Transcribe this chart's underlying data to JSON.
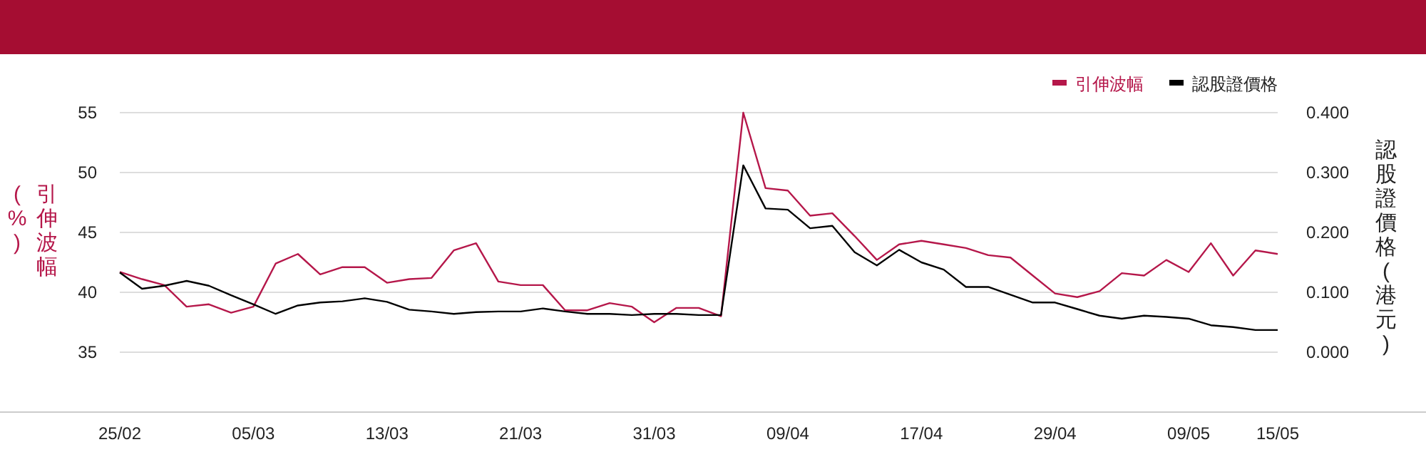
{
  "chart_data": {
    "type": "line",
    "categories": [
      "25/02",
      null,
      null,
      null,
      null,
      null,
      "05/03",
      null,
      null,
      null,
      null,
      null,
      "13/03",
      null,
      null,
      null,
      null,
      null,
      "21/03",
      null,
      null,
      null,
      null,
      null,
      "31/03",
      null,
      null,
      null,
      null,
      null,
      "09/04",
      null,
      null,
      null,
      null,
      null,
      "17/04",
      null,
      null,
      null,
      null,
      null,
      "29/04",
      null,
      null,
      null,
      null,
      null,
      "09/05",
      null,
      null,
      null,
      "15/05"
    ],
    "series": [
      {
        "name": "引伸波幅",
        "color": "#b5174a",
        "values": [
          41.7,
          41.1,
          40.6,
          38.8,
          39.0,
          38.3,
          38.8,
          42.4,
          43.2,
          41.5,
          42.1,
          42.1,
          40.8,
          41.1,
          41.2,
          43.5,
          44.1,
          40.9,
          40.6,
          40.6,
          38.5,
          38.5,
          39.1,
          38.8,
          37.5,
          38.7,
          38.7,
          38.0,
          55.0,
          48.7,
          48.5,
          46.4,
          46.6,
          44.7,
          42.7,
          44.0,
          44.3,
          44.0,
          43.7,
          43.1,
          42.9,
          41.4,
          39.9,
          39.6,
          40.1,
          41.6,
          41.4,
          42.7,
          41.7,
          44.1,
          41.4,
          43.5,
          43.2
        ]
      },
      {
        "name": "認股證價格",
        "color": "#000000",
        "axis": "y2",
        "values": [
          0.133,
          0.106,
          0.111,
          0.119,
          0.111,
          0.095,
          0.08,
          0.064,
          0.078,
          0.083,
          0.085,
          0.09,
          0.084,
          0.071,
          0.068,
          0.064,
          0.067,
          0.068,
          0.068,
          0.073,
          0.068,
          0.064,
          0.064,
          0.062,
          0.064,
          0.064,
          0.062,
          0.062,
          0.312,
          0.24,
          0.238,
          0.207,
          0.211,
          0.167,
          0.145,
          0.171,
          0.15,
          0.138,
          0.109,
          0.109,
          0.096,
          0.083,
          0.083,
          0.072,
          0.061,
          0.056,
          0.061,
          0.059,
          0.056,
          0.045,
          0.042,
          0.037,
          0.037
        ]
      }
    ],
    "ylabel": "引伸波幅(%)",
    "y2label": "認股證價格(港元)",
    "ylim": [
      30,
      55
    ],
    "yticks": [
      35,
      40,
      45,
      50,
      55
    ],
    "y2lim": [
      -0.1,
      0.4
    ],
    "y2ticks": [
      {
        "value": 0,
        "label": "0.000"
      },
      {
        "value": 0.1,
        "label": "0.100"
      },
      {
        "value": 0.2,
        "label": "0.200"
      },
      {
        "value": 0.3,
        "label": "0.300"
      },
      {
        "value": 0.4,
        "label": "0.400"
      }
    ],
    "grid": "y",
    "legend": "top right"
  }
}
